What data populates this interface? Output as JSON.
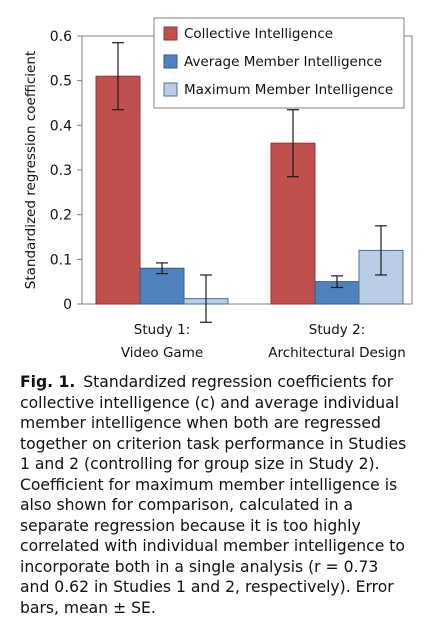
{
  "chart_data": {
    "type": "bar",
    "ylabel": "Standardized regression coefficient",
    "xlabel": "",
    "ylim": [
      0,
      0.6
    ],
    "yticks": [
      "0",
      "0.1",
      "0.2",
      "0.3",
      "0.4",
      "0.5",
      "0.6"
    ],
    "grid": false,
    "legend_position": "top-right",
    "categories": [
      {
        "line1": "Study 1:",
        "line2": "Video Game"
      },
      {
        "line1": "Study 2:",
        "line2": "Architectural Design"
      }
    ],
    "series": [
      {
        "name": "Collective Intelligence",
        "color": "#c0504d",
        "edge": "#8c3836",
        "values": [
          0.51,
          0.36
        ],
        "err": [
          0.075,
          0.075
        ]
      },
      {
        "name": "Average Member Intelligence",
        "color": "#4f81bd",
        "edge": "#2c5a8c",
        "values": [
          0.08,
          0.05
        ],
        "err": [
          0.012,
          0.013
        ]
      },
      {
        "name": "Maximum Member Intelligence",
        "color": "#b9cde5",
        "edge": "#4f6f95",
        "values": [
          0.012,
          0.12
        ],
        "err": [
          0.053,
          0.055
        ]
      }
    ]
  },
  "caption": {
    "label": "Fig. 1.",
    "text": "Standardized regression coefficients for collective intelligence (c) and average individual member intelligence when both are regressed together on criterion task performance in Studies 1 and 2 (controlling for group size in Study 2). Coefficient for maximum member intelligence is also shown for comparison, calculated in a separate regression because it is too highly correlated with individual member intelligence to incorporate both in a single analysis (r = 0.73 and 0.62 in Studies 1 and 2, respectively). Error bars, mean ± SE."
  }
}
